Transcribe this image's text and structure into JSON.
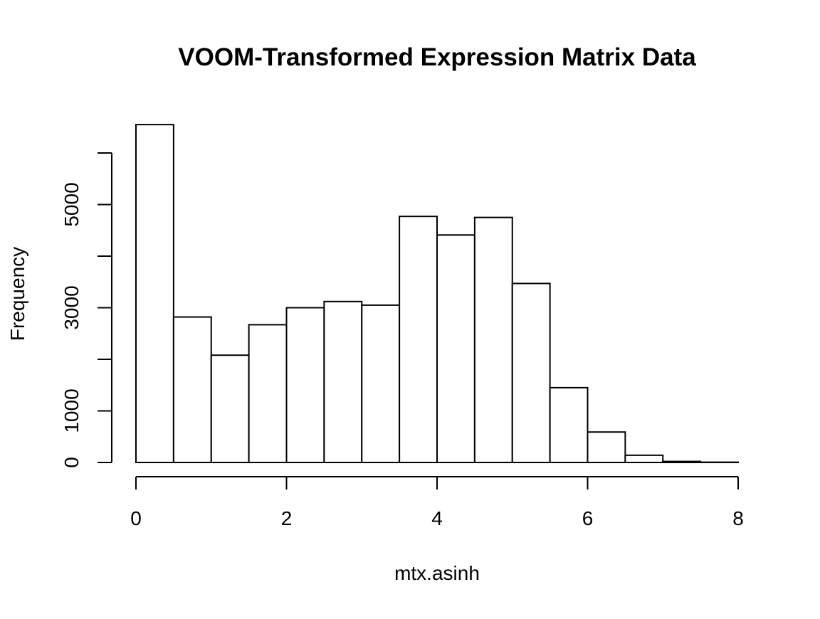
{
  "chart_data": {
    "type": "bar",
    "subtype": "histogram",
    "title": "VOOM-Transformed Expression Matrix Data",
    "xlabel": "mtx.asinh",
    "ylabel": "Frequency",
    "bin_width": 0.5,
    "bins": [
      {
        "x_start": 0.0,
        "x_end": 0.5,
        "count": 6550
      },
      {
        "x_start": 0.5,
        "x_end": 1.0,
        "count": 2820
      },
      {
        "x_start": 1.0,
        "x_end": 1.5,
        "count": 2080
      },
      {
        "x_start": 1.5,
        "x_end": 2.0,
        "count": 2670
      },
      {
        "x_start": 2.0,
        "x_end": 2.5,
        "count": 3000
      },
      {
        "x_start": 2.5,
        "x_end": 3.0,
        "count": 3120
      },
      {
        "x_start": 3.0,
        "x_end": 3.5,
        "count": 3050
      },
      {
        "x_start": 3.5,
        "x_end": 4.0,
        "count": 4770
      },
      {
        "x_start": 4.0,
        "x_end": 4.5,
        "count": 4410
      },
      {
        "x_start": 4.5,
        "x_end": 5.0,
        "count": 4750
      },
      {
        "x_start": 5.0,
        "x_end": 5.5,
        "count": 3470
      },
      {
        "x_start": 5.5,
        "x_end": 6.0,
        "count": 1450
      },
      {
        "x_start": 6.0,
        "x_end": 6.5,
        "count": 590
      },
      {
        "x_start": 6.5,
        "x_end": 7.0,
        "count": 140
      },
      {
        "x_start": 7.0,
        "x_end": 7.5,
        "count": 20
      },
      {
        "x_start": 7.5,
        "x_end": 8.0,
        "count": 5
      }
    ],
    "xlim": [
      0,
      8
    ],
    "ylim": [
      0,
      6550
    ],
    "x_ticks": [
      0,
      2,
      4,
      6,
      8
    ],
    "y_ticks": [
      0,
      1000,
      2000,
      3000,
      4000,
      5000,
      6000
    ],
    "y_tick_labels": [
      "0",
      "1000",
      "",
      "3000",
      "",
      "5000",
      ""
    ],
    "grid": false,
    "legend": "none",
    "bar_fill": "#ffffff",
    "bar_stroke": "#000000"
  }
}
